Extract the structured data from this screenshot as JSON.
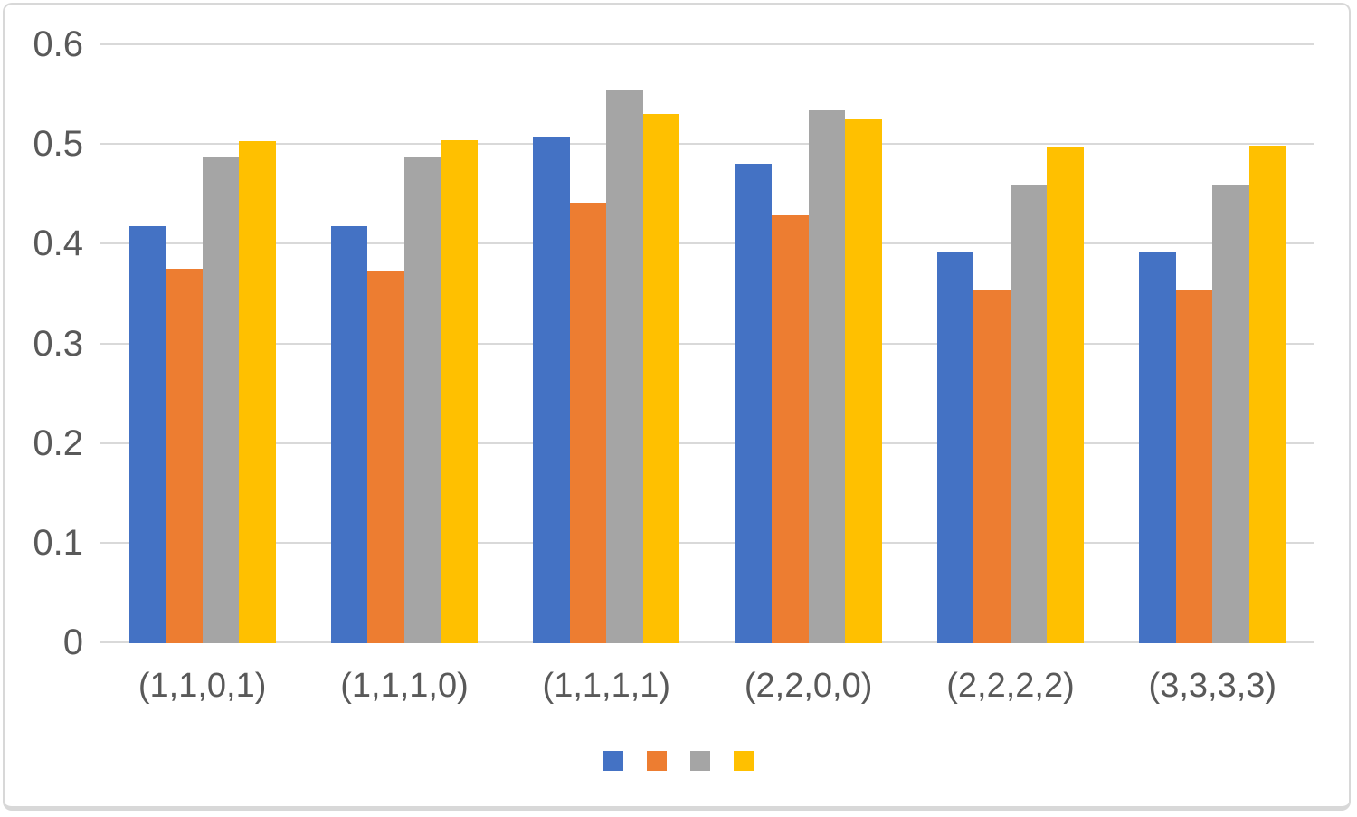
{
  "chart_data": {
    "type": "bar",
    "title": "",
    "categories": [
      "(1,1,0,1)",
      "(1,1,1,0)",
      "(1,1,1,1)",
      "(2,2,0,0)",
      "(2,2,2,2)",
      "(3,3,3,3)"
    ],
    "series": [
      {
        "name": "",
        "color_name": "blue",
        "color": "#4472C4",
        "values": [
          0.418,
          0.418,
          0.507,
          0.48,
          0.391,
          0.391
        ]
      },
      {
        "name": "",
        "color_name": "orange",
        "color": "#ED7D31",
        "values": [
          0.375,
          0.372,
          0.441,
          0.428,
          0.353,
          0.353
        ]
      },
      {
        "name": "",
        "color_name": "gray",
        "color": "#A5A5A5",
        "values": [
          0.487,
          0.487,
          0.555,
          0.534,
          0.458,
          0.458
        ]
      },
      {
        "name": "",
        "color_name": "yellow",
        "color": "#FFC000",
        "values": [
          0.503,
          0.504,
          0.53,
          0.525,
          0.497,
          0.498
        ]
      }
    ],
    "ylim": [
      0,
      0.6
    ],
    "yticks": [
      0,
      0.1,
      0.2,
      0.3,
      0.4,
      0.5,
      0.6
    ],
    "ytick_labels": [
      "0",
      "0.1",
      "0.2",
      "0.3",
      "0.4",
      "0.5",
      "0.6"
    ],
    "xlabel": "",
    "ylabel": "",
    "grid": true,
    "legend_position": "bottom",
    "legend_labels": [
      "",
      "",
      "",
      ""
    ]
  },
  "style": {
    "grid_color": "#d9d9d9",
    "text_color": "#595959",
    "border_color": "#d8d8d8",
    "background": "#ffffff"
  }
}
